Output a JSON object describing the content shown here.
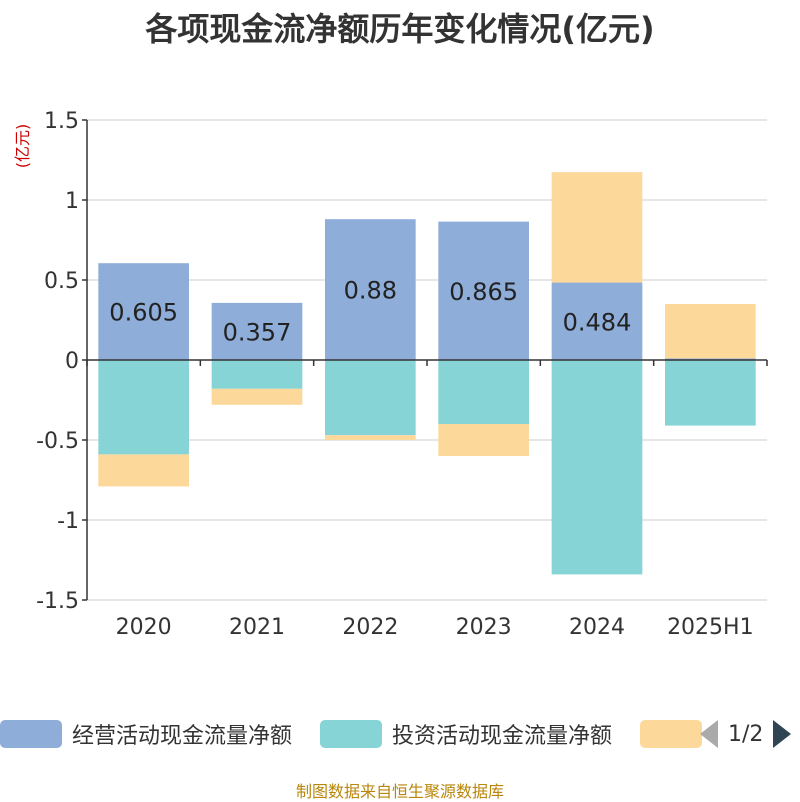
{
  "title": "各项现金流净额历年变化情况(亿元)",
  "source_note": "制图数据来自恒生聚源数据库",
  "chart_data": {
    "type": "bar",
    "stacked": true,
    "title": "各项现金流净额历年变化情况(亿元)",
    "ylabel": "(亿元)",
    "ylim": [
      -1.5,
      1.5
    ],
    "yticks": [
      "1.5",
      "1",
      "0.5",
      "0",
      "-0.5",
      "-1",
      "-1.5"
    ],
    "ytick_values": [
      1.5,
      1,
      0.5,
      0,
      -0.5,
      -1,
      -1.5
    ],
    "categories": [
      "2020",
      "2021",
      "2022",
      "2023",
      "2024",
      "2025H1"
    ],
    "grid": true,
    "legend_position": "bottom",
    "series": [
      {
        "name": "经营活动现金流量净额",
        "color": "#8eadd9",
        "values": [
          0.605,
          0.357,
          0.88,
          0.865,
          0.484,
          0.01
        ],
        "data_labels": [
          "0.605",
          "0.357",
          "0.88",
          "0.865",
          "0.484",
          ""
        ]
      },
      {
        "name": "投资活动现金流量净额",
        "color": "#86d4d6",
        "values": [
          -0.59,
          -0.18,
          -0.47,
          -0.4,
          -1.34,
          -0.41
        ]
      },
      {
        "name": "",
        "color": "#fdd89b",
        "values": [
          -0.2,
          -0.1,
          -0.03,
          -0.2,
          0.69,
          0.34
        ]
      }
    ]
  },
  "legend": {
    "items": [
      {
        "label": "经营活动现金流量净额",
        "color": "#8eadd9"
      },
      {
        "label": "投资活动现金流量净额",
        "color": "#86d4d6"
      },
      {
        "label": "",
        "color": "#fdd89b"
      }
    ],
    "page": "1/2"
  }
}
